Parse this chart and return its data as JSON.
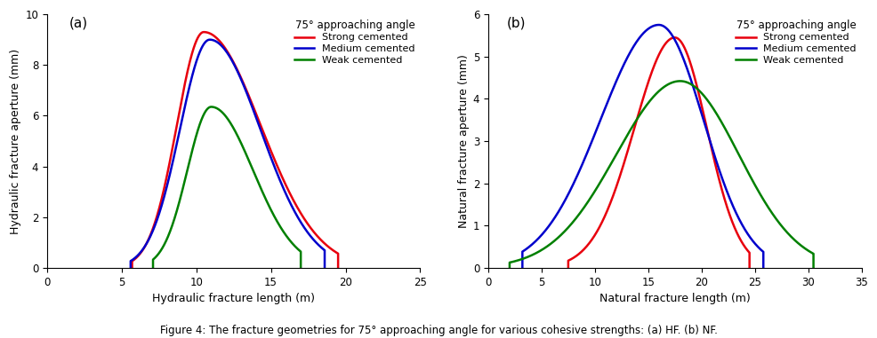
{
  "panel_a": {
    "label": "(a)",
    "xlabel": "Hydraulic fracture length (m)",
    "ylabel": "Hydraulic fracture aperture (mm)",
    "xlim": [
      0,
      25
    ],
    "ylim": [
      0,
      10
    ],
    "xticks": [
      0,
      5,
      10,
      15,
      20,
      25
    ],
    "yticks": [
      0,
      2,
      4,
      6,
      8,
      10
    ],
    "curves": [
      {
        "name": "strong",
        "color": "#e8000d",
        "x0": 5.7,
        "x_peak": 10.5,
        "x1": 19.5,
        "y_peak": 9.3,
        "sigma_rise": 1.8,
        "sigma_fall": 3.8
      },
      {
        "name": "medium",
        "color": "#0000cc",
        "x0": 5.6,
        "x_peak": 10.9,
        "x1": 18.6,
        "y_peak": 9.0,
        "sigma_rise": 2.0,
        "sigma_fall": 3.4
      },
      {
        "name": "weak",
        "color": "#008000",
        "x0": 7.1,
        "x_peak": 11.0,
        "x1": 17.0,
        "y_peak": 6.35,
        "sigma_rise": 1.6,
        "sigma_fall": 2.8
      }
    ]
  },
  "panel_b": {
    "label": "(b)",
    "xlabel": "Natural fracture length (m)",
    "ylabel": "Natural fracture aperture (mm)",
    "xlim": [
      0,
      35
    ],
    "ylim": [
      0,
      6
    ],
    "xticks": [
      0,
      5,
      10,
      15,
      20,
      25,
      30,
      35
    ],
    "yticks": [
      0,
      1,
      2,
      3,
      4,
      5,
      6
    ],
    "curves": [
      {
        "name": "strong",
        "color": "#e8000d",
        "x0": 7.5,
        "x_peak": 17.5,
        "x1": 24.5,
        "y_peak": 5.45,
        "sigma_rise": 3.8,
        "sigma_fall": 3.0
      },
      {
        "name": "medium",
        "color": "#0000cc",
        "x0": 3.2,
        "x_peak": 16.0,
        "x1": 25.8,
        "y_peak": 5.75,
        "sigma_rise": 5.5,
        "sigma_fall": 4.2
      },
      {
        "name": "weak",
        "color": "#008000",
        "x0": 2.0,
        "x_peak": 18.0,
        "x1": 30.5,
        "y_peak": 4.42,
        "sigma_rise": 6.0,
        "sigma_fall": 5.5
      }
    ]
  },
  "legend_title": "75° approaching angle",
  "legend_labels": [
    "Strong cemented",
    "Medium cemented",
    "Weak cemented"
  ],
  "legend_colors": [
    "#e8000d",
    "#0000cc",
    "#008000"
  ],
  "figure_caption": "Figure 4: The fracture geometries for 75° approaching angle for various cohesive strengths: (a) HF. (b) NF.",
  "line_width": 1.8
}
